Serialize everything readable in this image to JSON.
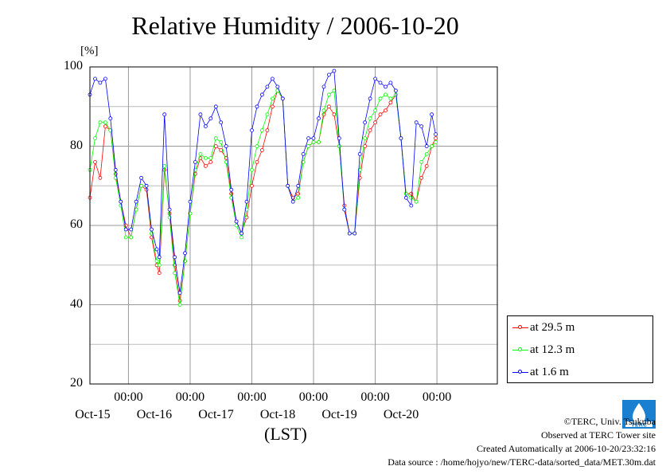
{
  "chart_data": {
    "type": "line",
    "title": "Relative Humidity / 2006-10-20",
    "ylabel": "[%]",
    "xlabel": "(LST)",
    "ylim": [
      20,
      100
    ],
    "yticks": [
      20,
      40,
      60,
      80,
      100
    ],
    "xlim": [
      "2006-10-14T09:00",
      "2006-10-20T23:30"
    ],
    "xticks": [
      {
        "time": "00:00",
        "date": "Oct-15"
      },
      {
        "time": "00:00",
        "date": "Oct-16"
      },
      {
        "time": "00:00",
        "date": "Oct-17"
      },
      {
        "time": "00:00",
        "date": "Oct-18"
      },
      {
        "time": "00:00",
        "date": "Oct-19"
      },
      {
        "time": "00:00",
        "date": "Oct-20"
      }
    ],
    "grid": true,
    "legend_position": "bottom-right",
    "series": [
      {
        "name": "at 29.5 m",
        "color": "#ff0000",
        "points": [
          [
            "2006-10-14T09:00",
            67
          ],
          [
            "2006-10-14T11:00",
            76
          ],
          [
            "2006-10-14T13:00",
            72
          ],
          [
            "2006-10-14T15:00",
            85
          ],
          [
            "2006-10-14T17:00",
            84
          ],
          [
            "2006-10-14T19:00",
            73
          ],
          [
            "2006-10-14T21:00",
            66
          ],
          [
            "2006-10-14T23:00",
            60
          ],
          [
            "2006-10-15T01:00",
            57
          ],
          [
            "2006-10-15T03:00",
            64
          ],
          [
            "2006-10-15T05:00",
            70
          ],
          [
            "2006-10-15T07:00",
            69
          ],
          [
            "2006-10-15T09:00",
            57
          ],
          [
            "2006-10-15T11:00",
            50
          ],
          [
            "2006-10-15T12:00",
            48
          ],
          [
            "2006-10-15T14:00",
            74
          ],
          [
            "2006-10-15T16:00",
            63
          ],
          [
            "2006-10-15T18:00",
            50
          ],
          [
            "2006-10-15T20:00",
            41
          ],
          [
            "2006-10-15T22:00",
            51
          ],
          [
            "2006-10-16T00:00",
            63
          ],
          [
            "2006-10-16T02:00",
            73
          ],
          [
            "2006-10-16T04:00",
            77
          ],
          [
            "2006-10-16T06:00",
            75
          ],
          [
            "2006-10-16T08:00",
            76
          ],
          [
            "2006-10-16T10:00",
            80
          ],
          [
            "2006-10-16T12:00",
            79
          ],
          [
            "2006-10-16T14:00",
            77
          ],
          [
            "2006-10-16T16:00",
            68
          ],
          [
            "2006-10-16T18:00",
            61
          ],
          [
            "2006-10-16T20:00",
            58
          ],
          [
            "2006-10-16T22:00",
            62
          ],
          [
            "2006-10-17T00:00",
            70
          ],
          [
            "2006-10-17T02:00",
            76
          ],
          [
            "2006-10-17T04:00",
            79
          ],
          [
            "2006-10-17T06:00",
            84
          ],
          [
            "2006-10-17T08:00",
            90
          ],
          [
            "2006-10-17T10:00",
            94
          ],
          [
            "2006-10-17T12:00",
            92
          ],
          [
            "2006-10-17T14:00",
            70
          ],
          [
            "2006-10-17T16:00",
            67
          ],
          [
            "2006-10-17T18:00",
            68
          ],
          [
            "2006-10-17T20:00",
            76
          ],
          [
            "2006-10-17T22:00",
            80
          ],
          [
            "2006-10-18T00:00",
            81
          ],
          [
            "2006-10-18T02:00",
            81
          ],
          [
            "2006-10-18T04:00",
            88
          ],
          [
            "2006-10-18T06:00",
            90
          ],
          [
            "2006-10-18T08:00",
            88
          ],
          [
            "2006-10-18T10:00",
            80
          ],
          [
            "2006-10-18T12:00",
            65
          ],
          [
            "2006-10-18T14:00",
            58
          ],
          [
            "2006-10-18T16:00",
            58
          ],
          [
            "2006-10-18T18:00",
            72
          ],
          [
            "2006-10-18T20:00",
            80
          ],
          [
            "2006-10-18T22:00",
            84
          ],
          [
            "2006-10-19T00:00",
            86
          ],
          [
            "2006-10-19T02:00",
            88
          ],
          [
            "2006-10-19T04:00",
            89
          ],
          [
            "2006-10-19T06:00",
            91
          ],
          [
            "2006-10-19T08:00",
            93
          ],
          [
            "2006-10-19T10:00",
            82
          ],
          [
            "2006-10-19T12:00",
            68
          ],
          [
            "2006-10-19T14:00",
            68
          ],
          [
            "2006-10-19T16:00",
            66
          ],
          [
            "2006-10-19T18:00",
            72
          ],
          [
            "2006-10-19T20:00",
            75
          ],
          [
            "2006-10-19T22:00",
            80
          ],
          [
            "2006-10-19T23:30",
            82
          ]
        ]
      },
      {
        "name": "at 12.3 m",
        "color": "#00ff00",
        "points": [
          [
            "2006-10-14T09:00",
            74
          ],
          [
            "2006-10-14T11:00",
            82
          ],
          [
            "2006-10-14T13:00",
            86
          ],
          [
            "2006-10-14T15:00",
            86
          ],
          [
            "2006-10-14T17:00",
            84
          ],
          [
            "2006-10-14T19:00",
            72
          ],
          [
            "2006-10-14T21:00",
            65
          ],
          [
            "2006-10-14T23:00",
            57
          ],
          [
            "2006-10-15T01:00",
            57
          ],
          [
            "2006-10-15T03:00",
            64
          ],
          [
            "2006-10-15T05:00",
            70
          ],
          [
            "2006-10-15T07:00",
            70
          ],
          [
            "2006-10-15T09:00",
            58
          ],
          [
            "2006-10-15T11:00",
            51
          ],
          [
            "2006-10-15T12:00",
            50
          ],
          [
            "2006-10-15T14:00",
            75
          ],
          [
            "2006-10-15T16:00",
            62
          ],
          [
            "2006-10-15T18:00",
            48
          ],
          [
            "2006-10-15T20:00",
            40
          ],
          [
            "2006-10-15T22:00",
            51
          ],
          [
            "2006-10-16T00:00",
            63
          ],
          [
            "2006-10-16T02:00",
            74
          ],
          [
            "2006-10-16T04:00",
            78
          ],
          [
            "2006-10-16T06:00",
            77
          ],
          [
            "2006-10-16T08:00",
            77
          ],
          [
            "2006-10-16T10:00",
            82
          ],
          [
            "2006-10-16T12:00",
            81
          ],
          [
            "2006-10-16T14:00",
            76
          ],
          [
            "2006-10-16T16:00",
            67
          ],
          [
            "2006-10-16T18:00",
            60
          ],
          [
            "2006-10-16T20:00",
            57
          ],
          [
            "2006-10-16T22:00",
            64
          ],
          [
            "2006-10-17T00:00",
            74
          ],
          [
            "2006-10-17T02:00",
            80
          ],
          [
            "2006-10-17T04:00",
            84
          ],
          [
            "2006-10-17T06:00",
            88
          ],
          [
            "2006-10-17T08:00",
            92
          ],
          [
            "2006-10-17T10:00",
            94
          ],
          [
            "2006-10-17T12:00",
            92
          ],
          [
            "2006-10-17T14:00",
            70
          ],
          [
            "2006-10-17T16:00",
            66
          ],
          [
            "2006-10-17T18:00",
            67
          ],
          [
            "2006-10-17T20:00",
            76
          ],
          [
            "2006-10-17T22:00",
            80
          ],
          [
            "2006-10-18T00:00",
            81
          ],
          [
            "2006-10-18T02:00",
            81
          ],
          [
            "2006-10-18T04:00",
            89
          ],
          [
            "2006-10-18T06:00",
            93
          ],
          [
            "2006-10-18T08:00",
            94
          ],
          [
            "2006-10-18T10:00",
            80
          ],
          [
            "2006-10-18T12:00",
            64
          ],
          [
            "2006-10-18T14:00",
            58
          ],
          [
            "2006-10-18T16:00",
            58
          ],
          [
            "2006-10-18T18:00",
            74
          ],
          [
            "2006-10-18T20:00",
            82
          ],
          [
            "2006-10-18T22:00",
            87
          ],
          [
            "2006-10-19T00:00",
            89
          ],
          [
            "2006-10-19T02:00",
            92
          ],
          [
            "2006-10-19T04:00",
            93
          ],
          [
            "2006-10-19T06:00",
            92
          ],
          [
            "2006-10-19T08:00",
            93
          ],
          [
            "2006-10-19T10:00",
            82
          ],
          [
            "2006-10-19T12:00",
            68
          ],
          [
            "2006-10-19T14:00",
            67
          ],
          [
            "2006-10-19T16:00",
            66
          ],
          [
            "2006-10-19T18:00",
            76
          ],
          [
            "2006-10-19T20:00",
            78
          ],
          [
            "2006-10-19T22:00",
            80
          ],
          [
            "2006-10-19T23:30",
            81
          ]
        ]
      },
      {
        "name": "at 1.6 m",
        "color": "#0000ff",
        "points": [
          [
            "2006-10-14T09:00",
            93
          ],
          [
            "2006-10-14T11:00",
            97
          ],
          [
            "2006-10-14T13:00",
            96
          ],
          [
            "2006-10-14T15:00",
            97
          ],
          [
            "2006-10-14T17:00",
            87
          ],
          [
            "2006-10-14T19:00",
            74
          ],
          [
            "2006-10-14T21:00",
            66
          ],
          [
            "2006-10-14T23:00",
            59
          ],
          [
            "2006-10-15T01:00",
            59
          ],
          [
            "2006-10-15T03:00",
            66
          ],
          [
            "2006-10-15T05:00",
            72
          ],
          [
            "2006-10-15T07:00",
            70
          ],
          [
            "2006-10-15T09:00",
            59
          ],
          [
            "2006-10-15T11:00",
            54
          ],
          [
            "2006-10-15T12:00",
            52
          ],
          [
            "2006-10-15T14:00",
            88
          ],
          [
            "2006-10-15T16:00",
            64
          ],
          [
            "2006-10-15T18:00",
            52
          ],
          [
            "2006-10-15T20:00",
            43
          ],
          [
            "2006-10-15T22:00",
            53
          ],
          [
            "2006-10-16T00:00",
            66
          ],
          [
            "2006-10-16T02:00",
            76
          ],
          [
            "2006-10-16T04:00",
            88
          ],
          [
            "2006-10-16T06:00",
            85
          ],
          [
            "2006-10-16T08:00",
            87
          ],
          [
            "2006-10-16T10:00",
            90
          ],
          [
            "2006-10-16T12:00",
            86
          ],
          [
            "2006-10-16T14:00",
            80
          ],
          [
            "2006-10-16T16:00",
            69
          ],
          [
            "2006-10-16T18:00",
            61
          ],
          [
            "2006-10-16T20:00",
            58
          ],
          [
            "2006-10-16T22:00",
            66
          ],
          [
            "2006-10-17T00:00",
            84
          ],
          [
            "2006-10-17T02:00",
            90
          ],
          [
            "2006-10-17T04:00",
            93
          ],
          [
            "2006-10-17T06:00",
            95
          ],
          [
            "2006-10-17T08:00",
            97
          ],
          [
            "2006-10-17T10:00",
            95
          ],
          [
            "2006-10-17T12:00",
            92
          ],
          [
            "2006-10-17T14:00",
            70
          ],
          [
            "2006-10-17T16:00",
            66
          ],
          [
            "2006-10-17T18:00",
            70
          ],
          [
            "2006-10-17T20:00",
            78
          ],
          [
            "2006-10-17T22:00",
            82
          ],
          [
            "2006-10-18T00:00",
            82
          ],
          [
            "2006-10-18T02:00",
            87
          ],
          [
            "2006-10-18T04:00",
            95
          ],
          [
            "2006-10-18T06:00",
            98
          ],
          [
            "2006-10-18T08:00",
            99
          ],
          [
            "2006-10-18T10:00",
            82
          ],
          [
            "2006-10-18T12:00",
            64
          ],
          [
            "2006-10-18T14:00",
            58
          ],
          [
            "2006-10-18T16:00",
            58
          ],
          [
            "2006-10-18T18:00",
            78
          ],
          [
            "2006-10-18T20:00",
            86
          ],
          [
            "2006-10-18T22:00",
            92
          ],
          [
            "2006-10-19T00:00",
            97
          ],
          [
            "2006-10-19T02:00",
            96
          ],
          [
            "2006-10-19T04:00",
            95
          ],
          [
            "2006-10-19T06:00",
            96
          ],
          [
            "2006-10-19T08:00",
            94
          ],
          [
            "2006-10-19T10:00",
            82
          ],
          [
            "2006-10-19T12:00",
            67
          ],
          [
            "2006-10-19T14:00",
            65
          ],
          [
            "2006-10-19T16:00",
            86
          ],
          [
            "2006-10-19T18:00",
            85
          ],
          [
            "2006-10-19T20:00",
            80
          ],
          [
            "2006-10-19T22:00",
            88
          ],
          [
            "2006-10-19T23:30",
            83
          ]
        ]
      }
    ]
  },
  "footer": {
    "copyright": "©TERC, Univ. Tsukuba",
    "observed": "Observed at TERC Tower site",
    "created": "Created Automatically at 2006-10-20/23:32:16",
    "source": "Data source : /home/hojyo/new/TERC-data/sorted_data/MET.30m.dat",
    "logo_text": "TERC"
  }
}
